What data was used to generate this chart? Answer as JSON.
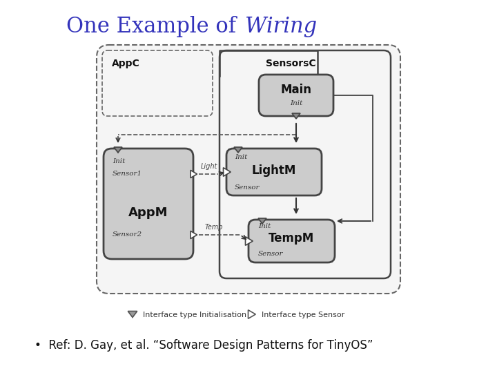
{
  "title_normal": "One Example of ",
  "title_italic": "Wiring",
  "title_color": "#3333bb",
  "title_fontsize": 22,
  "bg_color": "#ffffff",
  "ref_text": "•  Ref: D. Gay, et al. “Software Design Patterns for TinyOS”",
  "ref_fontsize": 12,
  "box_fill": "#cccccc",
  "box_edge": "#444444",
  "legend_tri_fill": "#999999"
}
